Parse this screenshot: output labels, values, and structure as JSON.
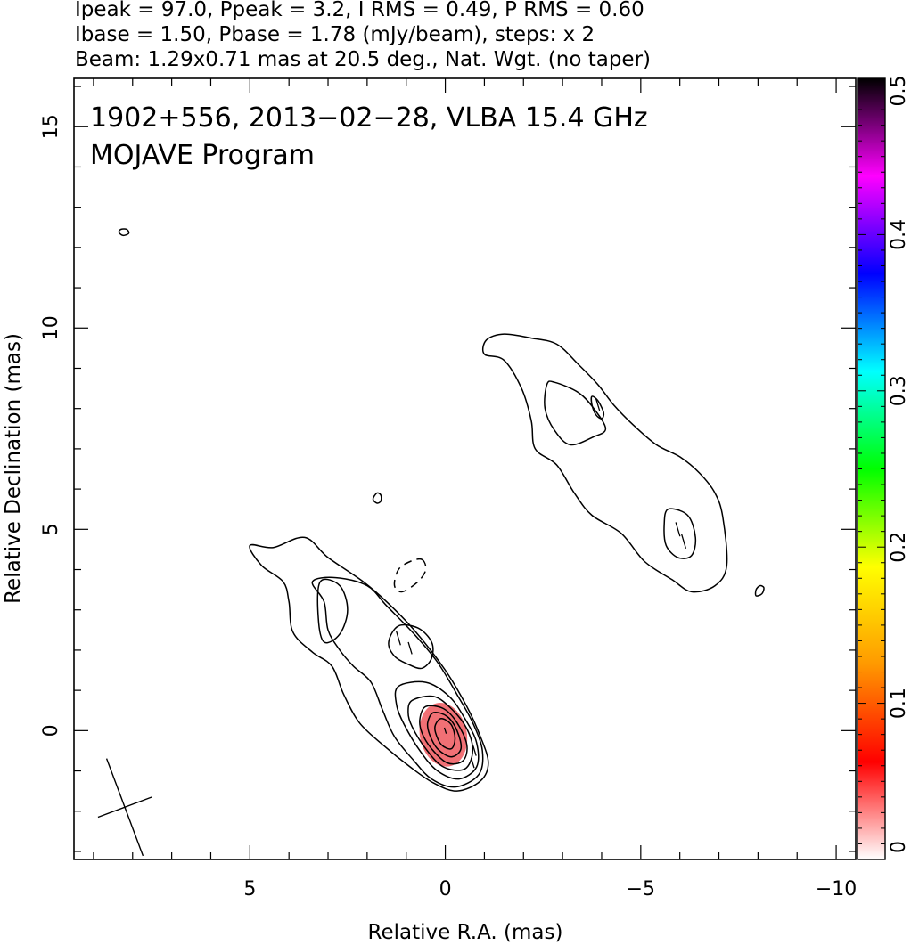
{
  "header": {
    "line1": "Ipeak = 97.0, Ppeak = 3.2, I RMS = 0.49, P RMS = 0.60",
    "line2": "Ibase = 1.50, Pbase = 1.78 (mJy/beam), steps: x 2",
    "line3": "Beam: 1.29x0.71 mas at 20.5 deg., Nat. Wgt. (no taper)"
  },
  "chart_data": {
    "type": "heatmap",
    "title": "1902+556, 2013−02−28, VLBA 15.4 GHz",
    "subtitle": "MOJAVE Program",
    "xlabel": "Relative R.A. (mas)",
    "ylabel": "Relative Declination (mas)",
    "xlim": [
      9.5,
      -10.5
    ],
    "ylim": [
      -3.2,
      16.2
    ],
    "x_ticks": [
      5,
      0,
      -5,
      -10
    ],
    "x_tick_labels": [
      "5",
      "0",
      "−5",
      "−10"
    ],
    "x_minor_step": 1,
    "y_ticks": [
      0,
      5,
      10,
      15
    ],
    "y_tick_labels": [
      "0",
      "5",
      "10",
      "15"
    ],
    "y_minor_step": 1,
    "colorbar": {
      "min": 0,
      "max": 0.5,
      "ticks": [
        0,
        0.1,
        0.2,
        0.3,
        0.4,
        0.5
      ],
      "tick_labels": [
        "0",
        "0.1",
        "0.2",
        "0.3",
        "0.4",
        "0.5"
      ],
      "colors": [
        "#ffffff",
        "#ff0000",
        "#ff9900",
        "#ffff00",
        "#00ff00",
        "#00ffff",
        "#0000ff",
        "#ff00ff",
        "#000000"
      ]
    },
    "polarization_patch": {
      "center": [
        0.05,
        -0.1
      ],
      "semi_axes": [
        0.6,
        0.8
      ],
      "value": 0.02,
      "color": "#f0686e"
    },
    "beam": {
      "center": [
        8.2,
        -1.9
      ],
      "major_mas": 1.29,
      "minor_mas": 0.71,
      "pa_deg": 20.5
    },
    "evpa_ticks": [
      {
        "x": 0.0,
        "y": 0.0,
        "len": 0.15
      },
      {
        "x": -0.7,
        "y": -0.8,
        "len": 0.25
      },
      {
        "x": -0.75,
        "y": -0.5,
        "len": 0.25
      },
      {
        "x": 1.2,
        "y": 2.3,
        "len": 0.35
      },
      {
        "x": 0.9,
        "y": 2.05,
        "len": 0.3
      },
      {
        "x": -3.9,
        "y": 8.1,
        "len": 0.3
      },
      {
        "x": -5.95,
        "y": 5.0,
        "len": 0.35
      },
      {
        "x": -6.1,
        "y": 4.7,
        "len": 0.35
      }
    ],
    "contours": [
      {
        "level": 1,
        "dashed": false,
        "points": [
          [
            5.0,
            4.6
          ],
          [
            4.4,
            4.55
          ],
          [
            3.6,
            4.8
          ],
          [
            3.0,
            4.3
          ],
          [
            2.1,
            3.7
          ],
          [
            1.5,
            3.2
          ],
          [
            0.8,
            2.5
          ],
          [
            0.0,
            1.5
          ],
          [
            -0.55,
            0.6
          ],
          [
            -0.9,
            -0.15
          ],
          [
            -1.1,
            -0.8
          ],
          [
            -0.9,
            -1.25
          ],
          [
            -0.3,
            -1.5
          ],
          [
            0.3,
            -1.3
          ],
          [
            0.9,
            -0.9
          ],
          [
            1.6,
            -0.35
          ],
          [
            2.2,
            0.2
          ],
          [
            2.6,
            0.9
          ],
          [
            2.9,
            1.6
          ],
          [
            3.4,
            1.95
          ],
          [
            3.9,
            2.45
          ],
          [
            4.0,
            3.2
          ],
          [
            4.15,
            3.7
          ],
          [
            4.7,
            4.1
          ],
          [
            5.0,
            4.6
          ]
        ]
      },
      {
        "level": 2,
        "dashed": false,
        "points": [
          [
            3.4,
            3.7
          ],
          [
            2.8,
            3.8
          ],
          [
            2.0,
            3.6
          ],
          [
            1.5,
            3.1
          ],
          [
            0.8,
            2.4
          ],
          [
            0.2,
            1.7
          ],
          [
            -0.3,
            0.9
          ],
          [
            -0.7,
            0.2
          ],
          [
            -0.95,
            -0.5
          ],
          [
            -0.85,
            -1.1
          ],
          [
            -0.25,
            -1.4
          ],
          [
            0.35,
            -1.2
          ],
          [
            0.8,
            -0.75
          ],
          [
            1.3,
            -0.15
          ],
          [
            1.6,
            0.5
          ],
          [
            1.9,
            1.2
          ],
          [
            2.35,
            1.6
          ],
          [
            2.7,
            2.0
          ],
          [
            3.0,
            2.5
          ],
          [
            3.1,
            3.2
          ],
          [
            3.4,
            3.7
          ]
        ]
      },
      {
        "level": 3,
        "dashed": false,
        "points": [
          [
            1.2,
            1.1
          ],
          [
            0.5,
            1.2
          ],
          [
            -0.1,
            0.85
          ],
          [
            -0.5,
            0.3
          ],
          [
            -0.8,
            -0.3
          ],
          [
            -0.8,
            -0.9
          ],
          [
            -0.35,
            -1.2
          ],
          [
            0.2,
            -1.0
          ],
          [
            0.65,
            -0.5
          ],
          [
            1.05,
            0.15
          ],
          [
            1.25,
            0.65
          ],
          [
            1.2,
            1.1
          ]
        ]
      },
      {
        "level": 4,
        "dashed": false,
        "points": [
          [
            0.85,
            0.75
          ],
          [
            0.3,
            0.85
          ],
          [
            -0.15,
            0.55
          ],
          [
            -0.55,
            0.05
          ],
          [
            -0.7,
            -0.5
          ],
          [
            -0.5,
            -0.95
          ],
          [
            0.05,
            -0.9
          ],
          [
            0.5,
            -0.45
          ],
          [
            0.85,
            0.1
          ],
          [
            0.95,
            0.45
          ],
          [
            0.85,
            0.75
          ]
        ]
      },
      {
        "level": 5,
        "dashed": false,
        "points": [
          [
            0.5,
            0.6
          ],
          [
            0.05,
            0.55
          ],
          [
            -0.3,
            0.2
          ],
          [
            -0.55,
            -0.35
          ],
          [
            -0.45,
            -0.75
          ],
          [
            -0.05,
            -0.8
          ],
          [
            0.35,
            -0.45
          ],
          [
            0.6,
            -0.05
          ],
          [
            0.65,
            0.3
          ],
          [
            0.5,
            0.6
          ]
        ]
      },
      {
        "level": 6,
        "dashed": false,
        "points": [
          [
            0.3,
            0.45
          ],
          [
            -0.05,
            0.35
          ],
          [
            -0.3,
            0.0
          ],
          [
            -0.4,
            -0.45
          ],
          [
            -0.15,
            -0.65
          ],
          [
            0.2,
            -0.45
          ],
          [
            0.4,
            -0.1
          ],
          [
            0.45,
            0.2
          ],
          [
            0.3,
            0.45
          ]
        ]
      },
      {
        "level": 7,
        "dashed": false,
        "points": [
          [
            0.1,
            0.3
          ],
          [
            -0.15,
            0.15
          ],
          [
            -0.25,
            -0.2
          ],
          [
            -0.15,
            -0.45
          ],
          [
            0.1,
            -0.35
          ],
          [
            0.25,
            -0.05
          ],
          [
            0.25,
            0.15
          ],
          [
            0.1,
            0.3
          ]
        ]
      },
      {
        "level": 1,
        "dashed": false,
        "points": [
          [
            1.2,
            2.6
          ],
          [
            0.7,
            2.55
          ],
          [
            0.35,
            2.2
          ],
          [
            0.35,
            1.8
          ],
          [
            0.6,
            1.55
          ],
          [
            0.95,
            1.65
          ],
          [
            1.3,
            1.85
          ],
          [
            1.45,
            2.2
          ],
          [
            1.2,
            2.6
          ]
        ]
      },
      {
        "level": 1,
        "dashed": false,
        "points": [
          [
            3.2,
            3.7
          ],
          [
            2.7,
            3.6
          ],
          [
            2.5,
            3.0
          ],
          [
            2.7,
            2.4
          ],
          [
            3.1,
            2.2
          ],
          [
            3.25,
            2.8
          ],
          [
            3.2,
            3.7
          ]
        ]
      },
      {
        "level": 1,
        "dashed": false,
        "points": [
          [
            -1.05,
            9.7
          ],
          [
            -1.0,
            9.35
          ],
          [
            -1.5,
            9.2
          ],
          [
            -1.95,
            8.5
          ],
          [
            -2.2,
            7.7
          ],
          [
            -2.3,
            7.0
          ],
          [
            -2.85,
            6.6
          ],
          [
            -3.3,
            5.9
          ],
          [
            -3.75,
            5.35
          ],
          [
            -4.5,
            4.9
          ],
          [
            -5.1,
            4.2
          ],
          [
            -5.8,
            3.75
          ],
          [
            -6.3,
            3.45
          ],
          [
            -6.9,
            3.6
          ],
          [
            -7.2,
            4.1
          ],
          [
            -7.1,
            5.3
          ],
          [
            -6.9,
            5.9
          ],
          [
            -6.5,
            6.4
          ],
          [
            -6.0,
            6.8
          ],
          [
            -5.4,
            7.1
          ],
          [
            -4.8,
            7.6
          ],
          [
            -4.3,
            8.1
          ],
          [
            -3.9,
            8.6
          ],
          [
            -3.4,
            9.1
          ],
          [
            -2.85,
            9.6
          ],
          [
            -2.2,
            9.75
          ],
          [
            -1.5,
            9.85
          ],
          [
            -1.05,
            9.7
          ]
        ]
      },
      {
        "level": 2,
        "dashed": false,
        "points": [
          [
            -2.6,
            8.6
          ],
          [
            -2.8,
            8.65
          ],
          [
            -3.4,
            8.4
          ],
          [
            -3.8,
            8.0
          ],
          [
            -4.1,
            7.5
          ],
          [
            -3.8,
            7.3
          ],
          [
            -3.2,
            7.1
          ],
          [
            -2.8,
            7.45
          ],
          [
            -2.55,
            8.0
          ],
          [
            -2.6,
            8.6
          ]
        ]
      },
      {
        "level": 3,
        "dashed": false,
        "points": [
          [
            -3.75,
            8.3
          ],
          [
            -3.9,
            8.2
          ],
          [
            -4.05,
            7.9
          ],
          [
            -4.0,
            7.75
          ],
          [
            -3.85,
            7.85
          ],
          [
            -3.75,
            8.1
          ],
          [
            -3.75,
            8.3
          ]
        ]
      },
      {
        "level": 2,
        "dashed": false,
        "points": [
          [
            -5.7,
            5.5
          ],
          [
            -6.2,
            5.35
          ],
          [
            -6.4,
            4.8
          ],
          [
            -6.3,
            4.35
          ],
          [
            -5.95,
            4.3
          ],
          [
            -5.65,
            4.6
          ],
          [
            -5.6,
            5.1
          ],
          [
            -5.7,
            5.5
          ]
        ]
      },
      {
        "level": 1,
        "dashed": false,
        "points": [
          [
            8.3,
            12.45
          ],
          [
            8.15,
            12.45
          ],
          [
            8.1,
            12.35
          ],
          [
            8.25,
            12.3
          ],
          [
            8.35,
            12.38
          ],
          [
            8.3,
            12.45
          ]
        ]
      },
      {
        "level": 1,
        "dashed": false,
        "points": [
          [
            1.75,
            5.9
          ],
          [
            1.65,
            5.85
          ],
          [
            1.65,
            5.7
          ],
          [
            1.75,
            5.65
          ],
          [
            1.85,
            5.75
          ],
          [
            1.75,
            5.9
          ]
        ]
      },
      {
        "level": 1,
        "dashed": false,
        "points": [
          [
            -8.05,
            3.6
          ],
          [
            -7.95,
            3.5
          ],
          [
            -7.95,
            3.35
          ],
          [
            -8.1,
            3.4
          ],
          [
            -8.15,
            3.55
          ],
          [
            -8.05,
            3.6
          ]
        ]
      },
      {
        "level": -1,
        "dashed": true,
        "points": [
          [
            0.6,
            4.25
          ],
          [
            0.5,
            4.0
          ],
          [
            0.7,
            3.7
          ],
          [
            1.1,
            3.45
          ],
          [
            1.3,
            3.6
          ],
          [
            1.2,
            4.0
          ],
          [
            0.9,
            4.2
          ],
          [
            0.6,
            4.25
          ]
        ]
      }
    ]
  }
}
